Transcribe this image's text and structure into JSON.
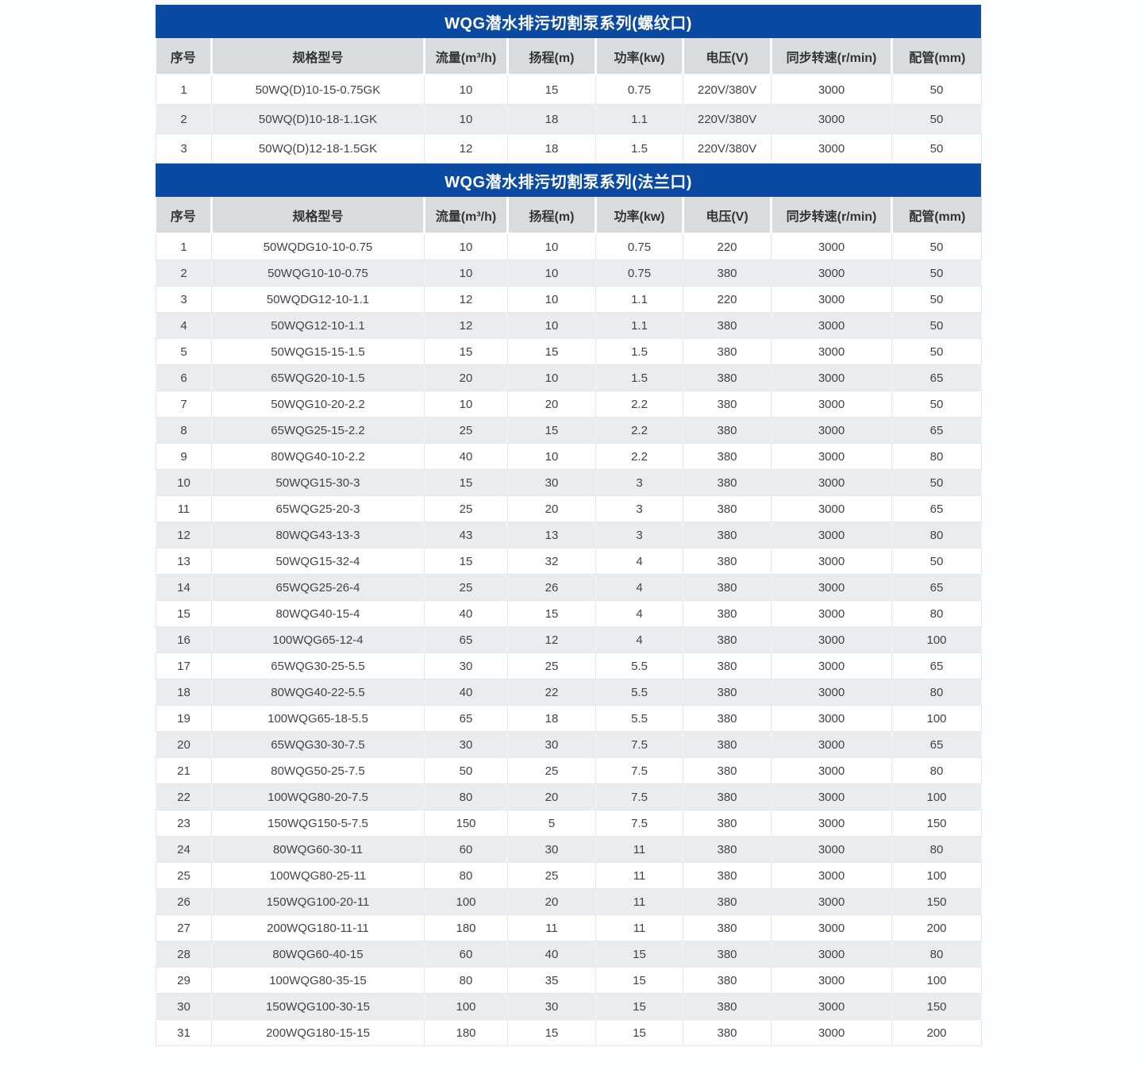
{
  "colors": {
    "banner_bg": "#0b4aa2",
    "banner_text": "#ffffff",
    "header_bg": "#d9dcdd",
    "row_even_bg": "#e9edf0",
    "row_odd_bg": "#ffffff",
    "cell_text": "#3e444b",
    "border": "#e4e7e9",
    "page_bg": "#fcfdfe"
  },
  "columns": [
    {
      "key": "index",
      "label": "序号"
    },
    {
      "key": "model",
      "label": "规格型号"
    },
    {
      "key": "flow",
      "label": "流量(m³/h)"
    },
    {
      "key": "head",
      "label": "扬程(m)"
    },
    {
      "key": "power",
      "label": "功率(kw)"
    },
    {
      "key": "voltage",
      "label": "电压(V)"
    },
    {
      "key": "speed",
      "label": "同步转速(r/min)"
    },
    {
      "key": "pipe",
      "label": "配管(mm)"
    }
  ],
  "tables": [
    {
      "title": "WQG潜水排污切割泵系列(螺纹口)",
      "rows": [
        {
          "index": "1",
          "model": "50WQ(D)10-15-0.75GK",
          "flow": "10",
          "head": "15",
          "power": "0.75",
          "voltage": "220V/380V",
          "speed": "3000",
          "pipe": "50"
        },
        {
          "index": "2",
          "model": "50WQ(D)10-18-1.1GK",
          "flow": "10",
          "head": "18",
          "power": "1.1",
          "voltage": "220V/380V",
          "speed": "3000",
          "pipe": "50"
        },
        {
          "index": "3",
          "model": "50WQ(D)12-18-1.5GK",
          "flow": "12",
          "head": "18",
          "power": "1.5",
          "voltage": "220V/380V",
          "speed": "3000",
          "pipe": "50"
        }
      ]
    },
    {
      "title": "WQG潜水排污切割泵系列(法兰口)",
      "rows": [
        {
          "index": "1",
          "model": "50WQDG10-10-0.75",
          "flow": "10",
          "head": "10",
          "power": "0.75",
          "voltage": "220",
          "speed": "3000",
          "pipe": "50"
        },
        {
          "index": "2",
          "model": "50WQG10-10-0.75",
          "flow": "10",
          "head": "10",
          "power": "0.75",
          "voltage": "380",
          "speed": "3000",
          "pipe": "50"
        },
        {
          "index": "3",
          "model": "50WQDG12-10-1.1",
          "flow": "12",
          "head": "10",
          "power": "1.1",
          "voltage": "220",
          "speed": "3000",
          "pipe": "50"
        },
        {
          "index": "4",
          "model": "50WQG12-10-1.1",
          "flow": "12",
          "head": "10",
          "power": "1.1",
          "voltage": "380",
          "speed": "3000",
          "pipe": "50"
        },
        {
          "index": "5",
          "model": "50WQG15-15-1.5",
          "flow": "15",
          "head": "15",
          "power": "1.5",
          "voltage": "380",
          "speed": "3000",
          "pipe": "50"
        },
        {
          "index": "6",
          "model": "65WQG20-10-1.5",
          "flow": "20",
          "head": "10",
          "power": "1.5",
          "voltage": "380",
          "speed": "3000",
          "pipe": "65"
        },
        {
          "index": "7",
          "model": "50WQG10-20-2.2",
          "flow": "10",
          "head": "20",
          "power": "2.2",
          "voltage": "380",
          "speed": "3000",
          "pipe": "50"
        },
        {
          "index": "8",
          "model": "65WQG25-15-2.2",
          "flow": "25",
          "head": "15",
          "power": "2.2",
          "voltage": "380",
          "speed": "3000",
          "pipe": "65"
        },
        {
          "index": "9",
          "model": "80WQG40-10-2.2",
          "flow": "40",
          "head": "10",
          "power": "2.2",
          "voltage": "380",
          "speed": "3000",
          "pipe": "80"
        },
        {
          "index": "10",
          "model": "50WQG15-30-3",
          "flow": "15",
          "head": "30",
          "power": "3",
          "voltage": "380",
          "speed": "3000",
          "pipe": "50"
        },
        {
          "index": "11",
          "model": "65WQG25-20-3",
          "flow": "25",
          "head": "20",
          "power": "3",
          "voltage": "380",
          "speed": "3000",
          "pipe": "65"
        },
        {
          "index": "12",
          "model": "80WQG43-13-3",
          "flow": "43",
          "head": "13",
          "power": "3",
          "voltage": "380",
          "speed": "3000",
          "pipe": "80"
        },
        {
          "index": "13",
          "model": "50WQG15-32-4",
          "flow": "15",
          "head": "32",
          "power": "4",
          "voltage": "380",
          "speed": "3000",
          "pipe": "50"
        },
        {
          "index": "14",
          "model": "65WQG25-26-4",
          "flow": "25",
          "head": "26",
          "power": "4",
          "voltage": "380",
          "speed": "3000",
          "pipe": "65"
        },
        {
          "index": "15",
          "model": "80WQG40-15-4",
          "flow": "40",
          "head": "15",
          "power": "4",
          "voltage": "380",
          "speed": "3000",
          "pipe": "80"
        },
        {
          "index": "16",
          "model": "100WQG65-12-4",
          "flow": "65",
          "head": "12",
          "power": "4",
          "voltage": "380",
          "speed": "3000",
          "pipe": "100"
        },
        {
          "index": "17",
          "model": "65WQG30-25-5.5",
          "flow": "30",
          "head": "25",
          "power": "5.5",
          "voltage": "380",
          "speed": "3000",
          "pipe": "65"
        },
        {
          "index": "18",
          "model": "80WQG40-22-5.5",
          "flow": "40",
          "head": "22",
          "power": "5.5",
          "voltage": "380",
          "speed": "3000",
          "pipe": "80"
        },
        {
          "index": "19",
          "model": "100WQG65-18-5.5",
          "flow": "65",
          "head": "18",
          "power": "5.5",
          "voltage": "380",
          "speed": "3000",
          "pipe": "100"
        },
        {
          "index": "20",
          "model": "65WQG30-30-7.5",
          "flow": "30",
          "head": "30",
          "power": "7.5",
          "voltage": "380",
          "speed": "3000",
          "pipe": "65"
        },
        {
          "index": "21",
          "model": "80WQG50-25-7.5",
          "flow": "50",
          "head": "25",
          "power": "7.5",
          "voltage": "380",
          "speed": "3000",
          "pipe": "80"
        },
        {
          "index": "22",
          "model": "100WQG80-20-7.5",
          "flow": "80",
          "head": "20",
          "power": "7.5",
          "voltage": "380",
          "speed": "3000",
          "pipe": "100"
        },
        {
          "index": "23",
          "model": "150WQG150-5-7.5",
          "flow": "150",
          "head": "5",
          "power": "7.5",
          "voltage": "380",
          "speed": "3000",
          "pipe": "150"
        },
        {
          "index": "24",
          "model": "80WQG60-30-11",
          "flow": "60",
          "head": "30",
          "power": "11",
          "voltage": "380",
          "speed": "3000",
          "pipe": "80"
        },
        {
          "index": "25",
          "model": "100WQG80-25-11",
          "flow": "80",
          "head": "25",
          "power": "11",
          "voltage": "380",
          "speed": "3000",
          "pipe": "100"
        },
        {
          "index": "26",
          "model": "150WQG100-20-11",
          "flow": "100",
          "head": "20",
          "power": "11",
          "voltage": "380",
          "speed": "3000",
          "pipe": "150"
        },
        {
          "index": "27",
          "model": "200WQG180-11-11",
          "flow": "180",
          "head": "11",
          "power": "11",
          "voltage": "380",
          "speed": "3000",
          "pipe": "200"
        },
        {
          "index": "28",
          "model": "80WQG60-40-15",
          "flow": "60",
          "head": "40",
          "power": "15",
          "voltage": "380",
          "speed": "3000",
          "pipe": "80"
        },
        {
          "index": "29",
          "model": "100WQG80-35-15",
          "flow": "80",
          "head": "35",
          "power": "15",
          "voltage": "380",
          "speed": "3000",
          "pipe": "100"
        },
        {
          "index": "30",
          "model": "150WQG100-30-15",
          "flow": "100",
          "head": "30",
          "power": "15",
          "voltage": "380",
          "speed": "3000",
          "pipe": "150"
        },
        {
          "index": "31",
          "model": "200WQG180-15-15",
          "flow": "180",
          "head": "15",
          "power": "15",
          "voltage": "380",
          "speed": "3000",
          "pipe": "200"
        }
      ]
    }
  ]
}
